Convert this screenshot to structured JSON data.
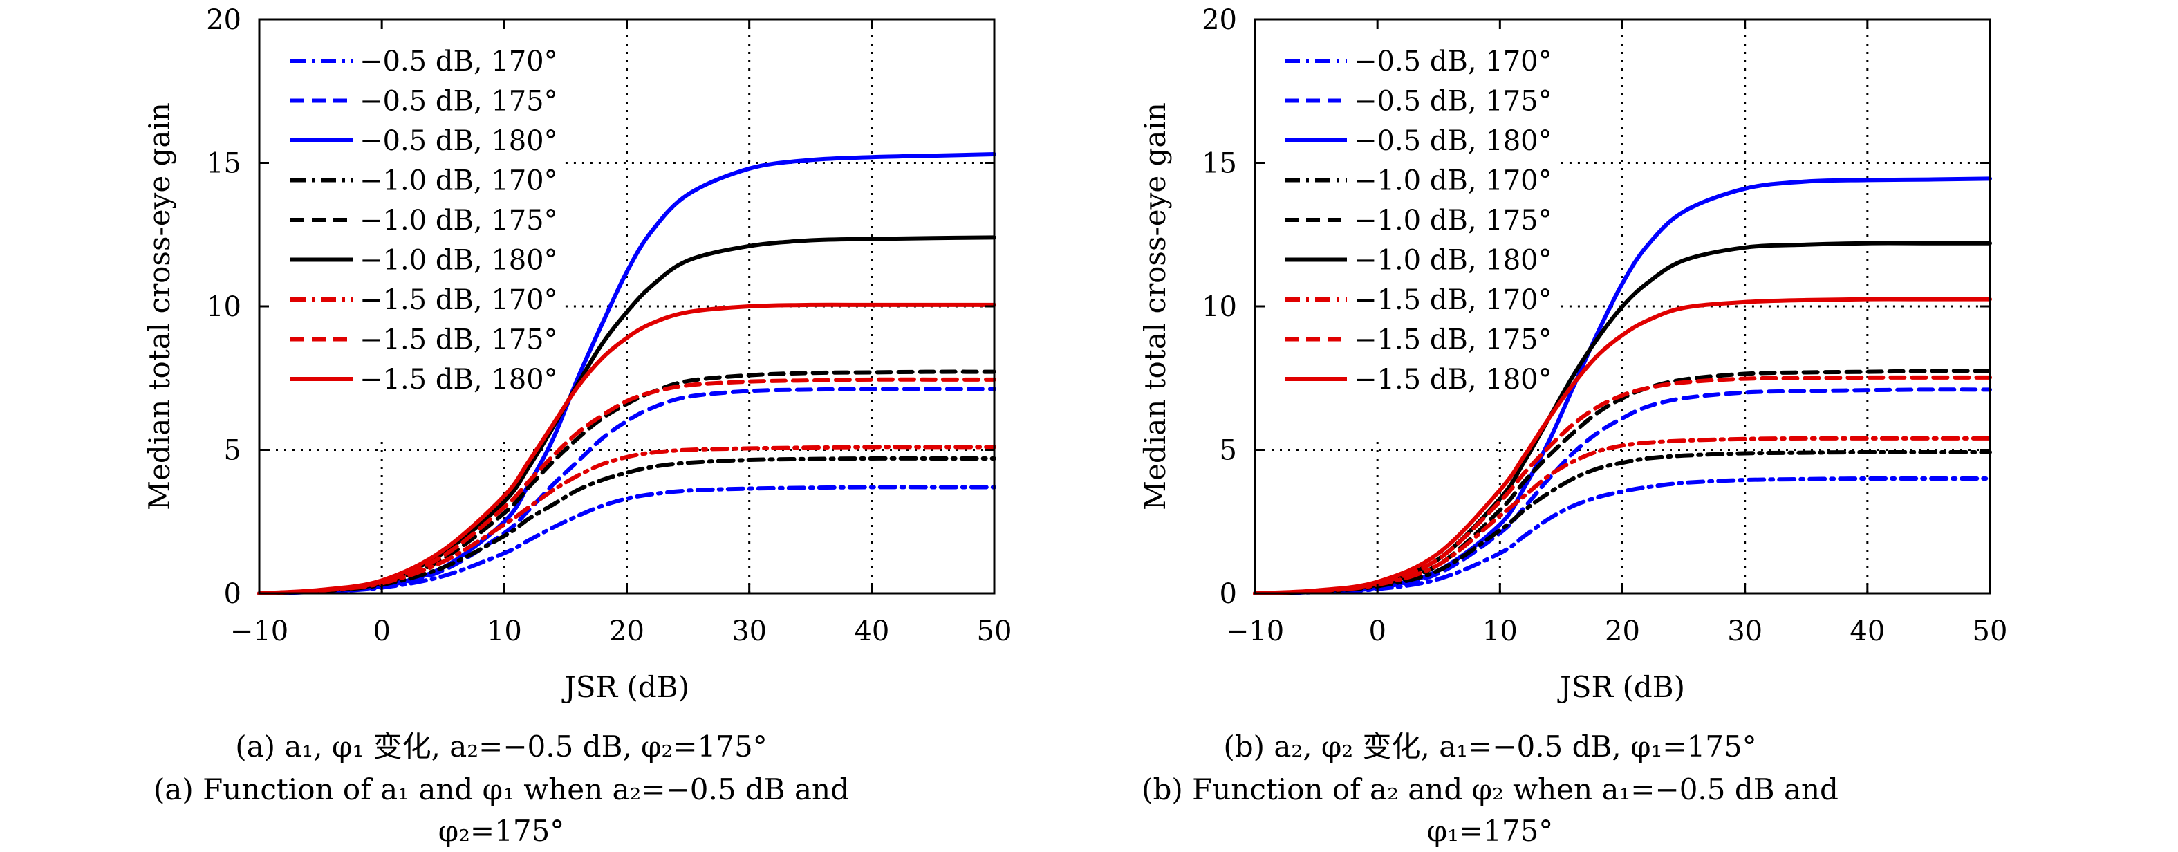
{
  "panels": [
    {
      "caption_cn": "(a) a₁, φ₁ 变化, a₂=−0.5 dB, φ₂=175°",
      "caption_en": "(a) Function of a₁ and φ₁ when a₂=−0.5 dB and φ₂=175°"
    },
    {
      "caption_cn": "(b) a₂, φ₂ 变化, a₁=−0.5 dB, φ₁=175°",
      "caption_en": "(b) Function of a₂ and φ₂ when a₁=−0.5 dB and φ₁=175°"
    }
  ],
  "chart_data": [
    {
      "type": "line",
      "xlabel": "JSR (dB)",
      "ylabel": "Median total cross-eye gain",
      "xlim": [
        -10,
        50
      ],
      "ylim": [
        0,
        20
      ],
      "xticks": [
        -10,
        0,
        10,
        20,
        30,
        40,
        50
      ],
      "yticks": [
        0,
        5,
        10,
        15,
        20
      ],
      "grid": "dotted reference lines",
      "legend": "top-left",
      "x": [
        -10,
        -5,
        0,
        5,
        10,
        12,
        14,
        16,
        18,
        20,
        22,
        25,
        30,
        35,
        40,
        45,
        50
      ],
      "series": [
        {
          "name": "−0.5 dB, 170°",
          "color": "#0000ff",
          "dash": "dashdot",
          "values": [
            0.0,
            0.06,
            0.2,
            0.6,
            1.4,
            1.85,
            2.3,
            2.7,
            3.05,
            3.3,
            3.45,
            3.58,
            3.65,
            3.68,
            3.7,
            3.7,
            3.7
          ]
        },
        {
          "name": "−0.5 dB, 175°",
          "color": "#0000ff",
          "dash": "dashed",
          "values": [
            0.0,
            0.07,
            0.25,
            0.8,
            2.1,
            2.9,
            3.8,
            4.6,
            5.4,
            6.0,
            6.45,
            6.85,
            7.05,
            7.1,
            7.12,
            7.12,
            7.12
          ]
        },
        {
          "name": "−0.5 dB, 180°",
          "color": "#0000ff",
          "dash": "solid",
          "values": [
            0.0,
            0.06,
            0.25,
            0.9,
            2.5,
            3.8,
            5.4,
            7.5,
            9.4,
            11.2,
            12.6,
            13.9,
            14.8,
            15.1,
            15.2,
            15.25,
            15.3
          ]
        },
        {
          "name": "−1.0 dB, 170°",
          "color": "#000000",
          "dash": "dashdot",
          "values": [
            0.0,
            0.08,
            0.3,
            0.9,
            2.0,
            2.6,
            3.1,
            3.6,
            3.95,
            4.2,
            4.4,
            4.55,
            4.65,
            4.68,
            4.7,
            4.7,
            4.7
          ]
        },
        {
          "name": "−1.0 dB, 175°",
          "color": "#000000",
          "dash": "dashed",
          "values": [
            0.0,
            0.1,
            0.35,
            1.2,
            2.8,
            3.7,
            4.6,
            5.4,
            6.1,
            6.6,
            7.0,
            7.4,
            7.6,
            7.68,
            7.7,
            7.72,
            7.72
          ]
        },
        {
          "name": "−1.0 dB, 180°",
          "color": "#000000",
          "dash": "solid",
          "values": [
            0.0,
            0.1,
            0.4,
            1.4,
            3.2,
            4.4,
            5.8,
            7.3,
            8.7,
            9.8,
            10.7,
            11.6,
            12.1,
            12.3,
            12.35,
            12.38,
            12.4
          ]
        },
        {
          "name": "−1.5 dB, 170°",
          "color": "#e00000",
          "dash": "dashdot",
          "values": [
            0.0,
            0.1,
            0.35,
            1.1,
            2.4,
            3.0,
            3.6,
            4.1,
            4.5,
            4.75,
            4.9,
            5.0,
            5.05,
            5.08,
            5.1,
            5.1,
            5.1
          ]
        },
        {
          "name": "−1.5 dB, 175°",
          "color": "#e00000",
          "dash": "dashed",
          "values": [
            0.0,
            0.1,
            0.4,
            1.3,
            3.0,
            3.9,
            4.8,
            5.6,
            6.2,
            6.7,
            7.0,
            7.25,
            7.38,
            7.42,
            7.45,
            7.45,
            7.45
          ]
        },
        {
          "name": "−1.5 dB, 180°",
          "color": "#e00000",
          "dash": "solid",
          "values": [
            0.0,
            0.12,
            0.45,
            1.5,
            3.4,
            4.6,
            5.9,
            7.2,
            8.2,
            8.9,
            9.4,
            9.8,
            10.0,
            10.05,
            10.05,
            10.05,
            10.05
          ]
        }
      ]
    },
    {
      "type": "line",
      "xlabel": "JSR (dB)",
      "ylabel": "Median total cross-eye gain",
      "xlim": [
        -10,
        50
      ],
      "ylim": [
        0,
        20
      ],
      "xticks": [
        -10,
        0,
        10,
        20,
        30,
        40,
        50
      ],
      "yticks": [
        0,
        5,
        10,
        15,
        20
      ],
      "grid": "dotted reference lines",
      "legend": "top-left",
      "x": [
        -10,
        -5,
        0,
        5,
        10,
        12,
        14,
        16,
        18,
        20,
        22,
        25,
        30,
        35,
        40,
        45,
        50
      ],
      "series": [
        {
          "name": "−0.5 dB, 170°",
          "color": "#0000ff",
          "dash": "dashdot",
          "values": [
            0.0,
            0.04,
            0.15,
            0.5,
            1.4,
            2.0,
            2.6,
            3.05,
            3.35,
            3.55,
            3.7,
            3.85,
            3.95,
            3.98,
            4.0,
            4.0,
            4.0
          ]
        },
        {
          "name": "−0.5 dB, 175°",
          "color": "#0000ff",
          "dash": "dashed",
          "values": [
            0.0,
            0.05,
            0.2,
            0.7,
            2.1,
            3.0,
            4.0,
            4.9,
            5.6,
            6.1,
            6.5,
            6.8,
            7.0,
            7.05,
            7.08,
            7.1,
            7.1
          ]
        },
        {
          "name": "−0.5 dB, 180°",
          "color": "#0000ff",
          "dash": "solid",
          "values": [
            0.0,
            0.05,
            0.2,
            0.8,
            2.4,
            3.7,
            5.3,
            7.2,
            9.1,
            10.8,
            12.1,
            13.3,
            14.1,
            14.35,
            14.4,
            14.42,
            14.45
          ]
        },
        {
          "name": "−1.0 dB, 170°",
          "color": "#000000",
          "dash": "dashdot",
          "values": [
            0.0,
            0.06,
            0.25,
            0.8,
            2.2,
            2.9,
            3.5,
            4.0,
            4.35,
            4.55,
            4.7,
            4.8,
            4.88,
            4.9,
            4.92,
            4.92,
            4.92
          ]
        },
        {
          "name": "−1.0 dB, 175°",
          "color": "#000000",
          "dash": "dashed",
          "values": [
            0.0,
            0.07,
            0.3,
            1.0,
            2.9,
            3.9,
            4.8,
            5.6,
            6.3,
            6.8,
            7.15,
            7.45,
            7.65,
            7.7,
            7.72,
            7.75,
            7.75
          ]
        },
        {
          "name": "−1.0 dB, 180°",
          "color": "#000000",
          "dash": "solid",
          "values": [
            0.0,
            0.08,
            0.35,
            1.2,
            3.3,
            4.6,
            6.1,
            7.6,
            8.9,
            10.0,
            10.8,
            11.6,
            12.05,
            12.15,
            12.2,
            12.2,
            12.2
          ]
        },
        {
          "name": "−1.5 dB, 170°",
          "color": "#e00000",
          "dash": "dashdot",
          "values": [
            0.0,
            0.08,
            0.3,
            1.0,
            2.7,
            3.4,
            4.1,
            4.6,
            4.95,
            5.15,
            5.25,
            5.32,
            5.38,
            5.4,
            5.4,
            5.4,
            5.4
          ]
        },
        {
          "name": "−1.5 dB, 175°",
          "color": "#e00000",
          "dash": "dashed",
          "values": [
            0.0,
            0.08,
            0.35,
            1.2,
            3.2,
            4.2,
            5.1,
            5.9,
            6.5,
            6.9,
            7.15,
            7.35,
            7.48,
            7.5,
            7.52,
            7.52,
            7.52
          ]
        },
        {
          "name": "−1.5 dB, 180°",
          "color": "#e00000",
          "dash": "solid",
          "values": [
            0.0,
            0.1,
            0.4,
            1.4,
            3.6,
            4.8,
            6.1,
            7.3,
            8.3,
            9.0,
            9.5,
            9.95,
            10.15,
            10.22,
            10.25,
            10.25,
            10.25
          ]
        }
      ]
    }
  ]
}
